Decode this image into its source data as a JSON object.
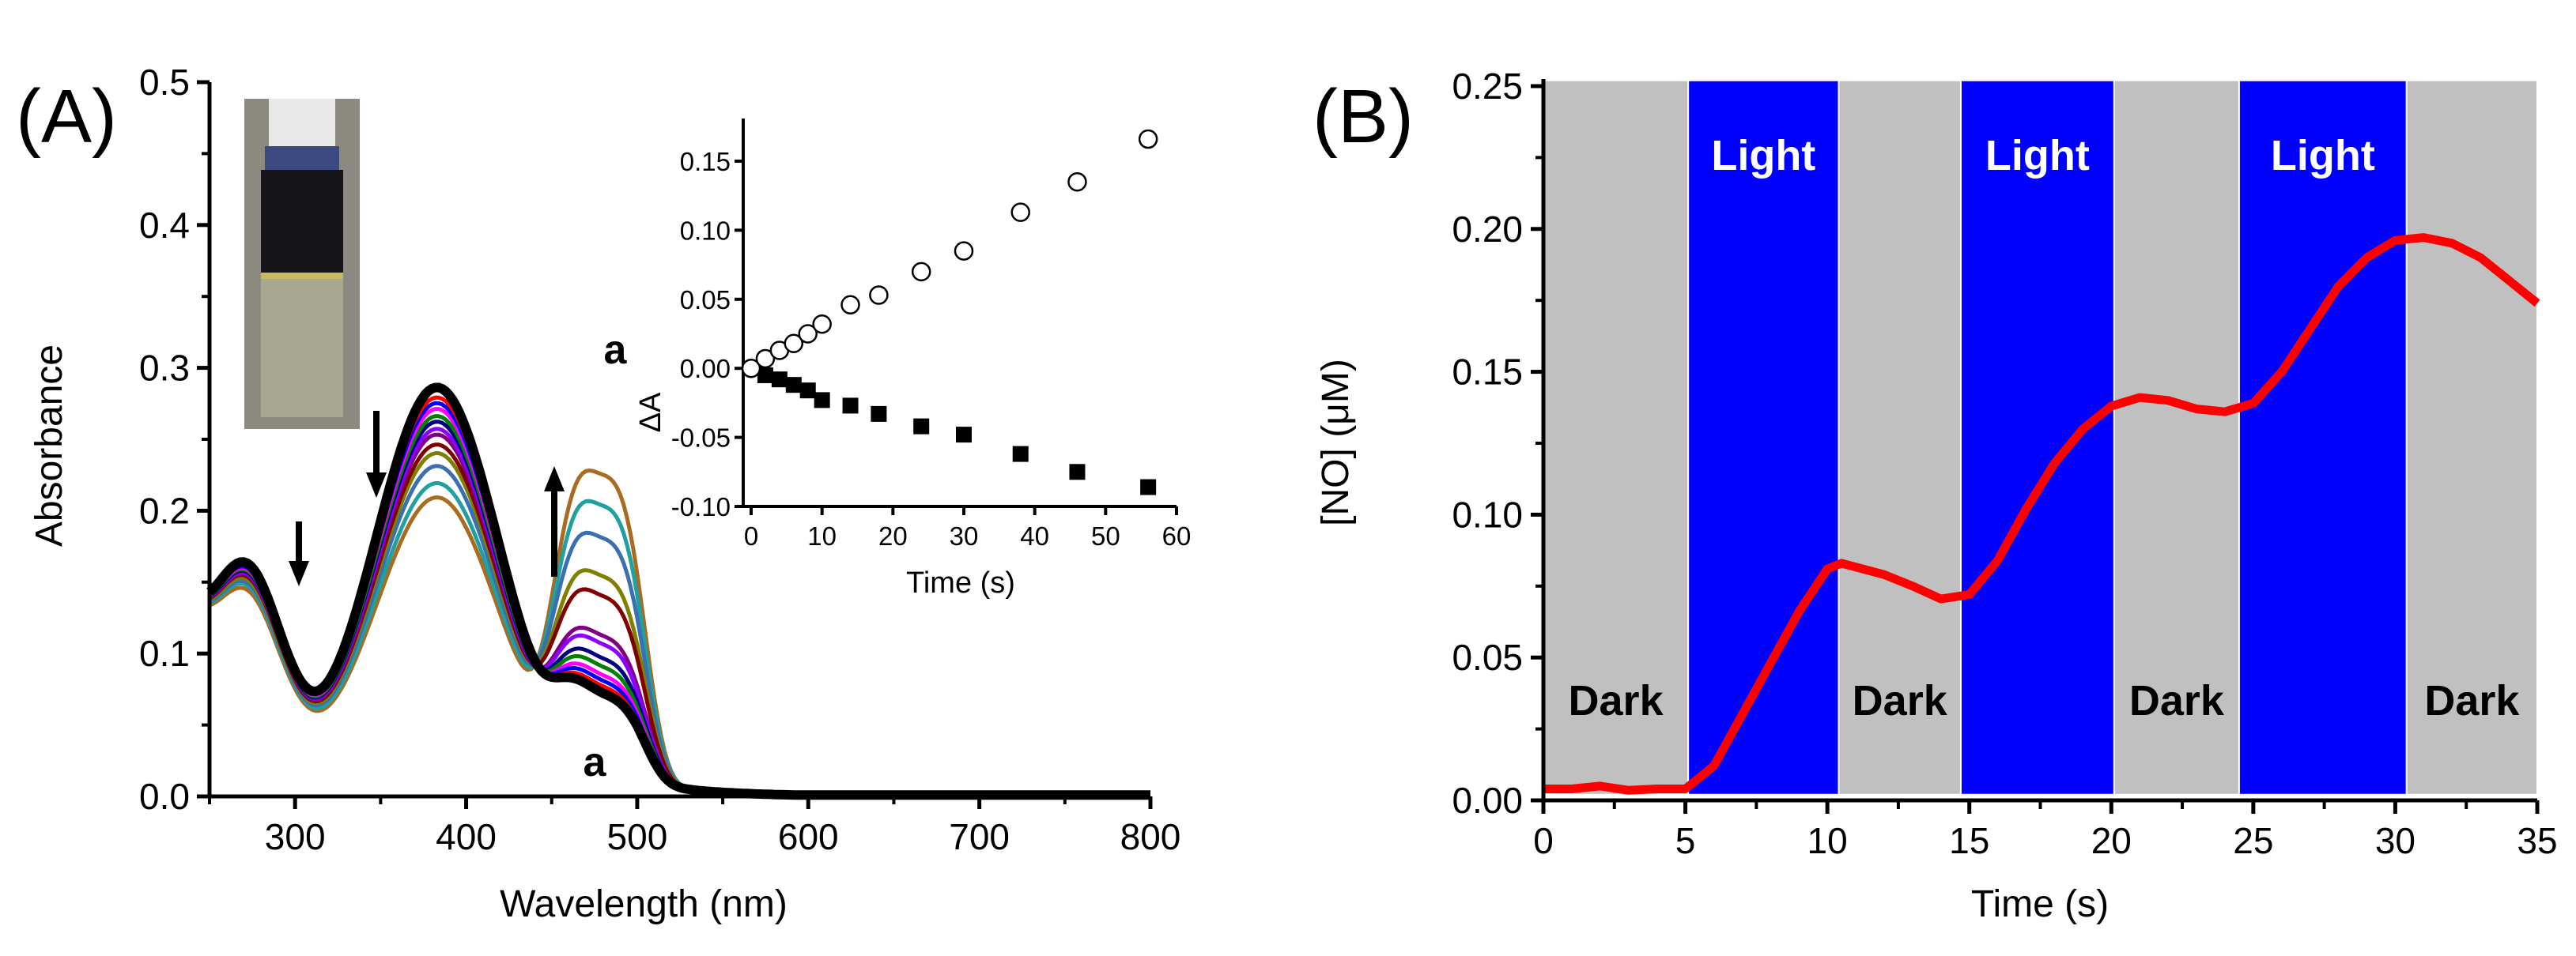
{
  "chart_data": [
    {
      "panel": "(A)",
      "type": "line",
      "xlabel": "Wavelength (nm)",
      "ylabel": "Absorbance",
      "xlim": [
        250,
        800
      ],
      "ylim": [
        0,
        0.5
      ],
      "xticks": [
        "300",
        "400",
        "500",
        "600",
        "700",
        "800"
      ],
      "yticks": [
        "0.0",
        "0.1",
        "0.2",
        "0.3",
        "0.4",
        "0.5"
      ],
      "annotations": [
        "a",
        "a"
      ],
      "arrows": [
        {
          "at_nm": 300,
          "direction": "down"
        },
        {
          "at_nm": 350,
          "direction": "down"
        },
        {
          "at_nm": 450,
          "direction": "up"
        }
      ],
      "series_note": "peak absorbance of each spectrum at 273, 383 and 480 nm",
      "series": [
        {
          "color": "#000000",
          "p273": 0.152,
          "p383": 0.288,
          "p480": 0.055
        },
        {
          "color": "#ff0000",
          "p273": 0.15,
          "p383": 0.281,
          "p480": 0.06
        },
        {
          "color": "#0000ff",
          "p273": 0.149,
          "p383": 0.277,
          "p480": 0.064
        },
        {
          "color": "#ff00ff",
          "p273": 0.148,
          "p383": 0.273,
          "p480": 0.068
        },
        {
          "color": "#008000",
          "p273": 0.147,
          "p383": 0.268,
          "p480": 0.074
        },
        {
          "color": "#000080",
          "p273": 0.146,
          "p383": 0.264,
          "p480": 0.08
        },
        {
          "color": "#8b00ff",
          "p273": 0.145,
          "p383": 0.259,
          "p480": 0.09
        },
        {
          "color": "#800080",
          "p273": 0.144,
          "p383": 0.255,
          "p480": 0.096
        },
        {
          "color": "#800000",
          "p273": 0.143,
          "p383": 0.248,
          "p480": 0.124
        },
        {
          "color": "#808000",
          "p273": 0.141,
          "p383": 0.242,
          "p480": 0.138
        },
        {
          "color": "#3a6fb0",
          "p273": 0.139,
          "p383": 0.233,
          "p480": 0.165
        },
        {
          "color": "#20a0a0",
          "p273": 0.137,
          "p383": 0.221,
          "p480": 0.188
        },
        {
          "color": "#a86b20",
          "p273": 0.134,
          "p383": 0.211,
          "p480": 0.21
        }
      ]
    },
    {
      "panel": "(A) inset",
      "type": "scatter",
      "xlabel": "Time (s)",
      "ylabel": "ΔA",
      "xlim": [
        -1,
        60
      ],
      "ylim": [
        -0.1,
        0.18
      ],
      "xticks": [
        "0",
        "10",
        "20",
        "30",
        "40",
        "50",
        "60"
      ],
      "yticks": [
        "-0.10",
        "-0.05",
        "0.00",
        "0.05",
        "0.10",
        "0.15"
      ],
      "series": [
        {
          "name": "open circles",
          "marker": "open-circle",
          "x": [
            0,
            2,
            4,
            6,
            8,
            10,
            14,
            18,
            24,
            30,
            38,
            46,
            56
          ],
          "y": [
            0,
            0.007,
            0.013,
            0.018,
            0.025,
            0.032,
            0.046,
            0.053,
            0.07,
            0.085,
            0.113,
            0.135,
            0.166
          ]
        },
        {
          "name": "filled squares",
          "marker": "filled-square",
          "x": [
            2,
            4,
            6,
            8,
            10,
            14,
            18,
            24,
            30,
            38,
            46,
            56
          ],
          "y": [
            -0.005,
            -0.008,
            -0.012,
            -0.016,
            -0.023,
            -0.027,
            -0.033,
            -0.042,
            -0.048,
            -0.062,
            -0.075,
            -0.086
          ]
        }
      ]
    },
    {
      "panel": "(B)",
      "type": "line",
      "xlabel": "Time (s)",
      "ylabel": "[NO] (μM)",
      "xlim": [
        0,
        35
      ],
      "ylim": [
        0,
        0.25
      ],
      "xticks": [
        "0",
        "5",
        "10",
        "15",
        "20",
        "25",
        "30",
        "35"
      ],
      "yticks": [
        "0.00",
        "0.05",
        "0.10",
        "0.15",
        "0.20",
        "0.25"
      ],
      "bands": [
        {
          "label": "Dark",
          "from": 0,
          "to": 5.1,
          "color": "#c0c0c0"
        },
        {
          "label": "Light",
          "from": 5.1,
          "to": 10.4,
          "color": "#0000ff"
        },
        {
          "label": "Dark",
          "from": 10.4,
          "to": 14.7,
          "color": "#c0c0c0"
        },
        {
          "label": "Light",
          "from": 14.7,
          "to": 20.1,
          "color": "#0000ff"
        },
        {
          "label": "Dark",
          "from": 20.1,
          "to": 24.5,
          "color": "#c0c0c0"
        },
        {
          "label": "Light",
          "from": 24.5,
          "to": 30.4,
          "color": "#0000ff"
        },
        {
          "label": "Dark",
          "from": 30.4,
          "to": 35,
          "color": "#c0c0c0"
        }
      ],
      "series": [
        {
          "name": "[NO]",
          "color": "#ff0000",
          "x": [
            0,
            1,
            2,
            3,
            4,
            5,
            6,
            7,
            8,
            9,
            10,
            10.5,
            12,
            13,
            14,
            15,
            16,
            17,
            18,
            19,
            20,
            21,
            22,
            23,
            24,
            25,
            26,
            27,
            28,
            29,
            30,
            31,
            32,
            33,
            34,
            35
          ],
          "y": [
            0.004,
            0.004,
            0.005,
            0.0035,
            0.004,
            0.004,
            0.012,
            0.03,
            0.048,
            0.066,
            0.081,
            0.083,
            0.079,
            0.075,
            0.0705,
            0.072,
            0.084,
            0.102,
            0.118,
            0.13,
            0.138,
            0.141,
            0.14,
            0.137,
            0.136,
            0.139,
            0.15,
            0.165,
            0.18,
            0.19,
            0.196,
            0.197,
            0.195,
            0.19,
            0.182,
            0.174
          ]
        }
      ]
    }
  ]
}
